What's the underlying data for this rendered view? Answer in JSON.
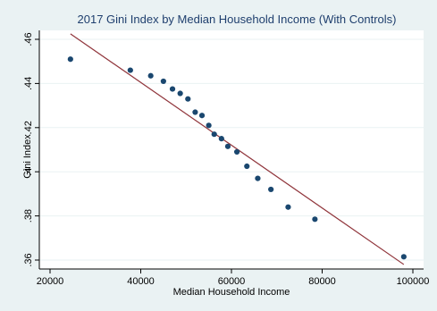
{
  "chart_data": {
    "type": "scatter",
    "title": "2017 Gini Index by Median Household Income (With Controls)",
    "xlabel": "Median Household Income",
    "ylabel": "Gini Index",
    "xlim": [
      20000,
      100000
    ],
    "ylim": [
      0.36,
      0.46
    ],
    "xticks": [
      20000,
      40000,
      60000,
      80000,
      100000
    ],
    "xtick_labels": [
      "20000",
      "40000",
      "60000",
      "80000",
      "100000"
    ],
    "yticks": [
      0.36,
      0.38,
      0.4,
      0.42,
      0.44,
      0.46
    ],
    "ytick_labels": [
      ".36",
      ".38",
      ".4",
      ".42",
      ".44",
      ".46"
    ],
    "grid": true,
    "legend": "none",
    "colors": {
      "background": "#eaf2f3",
      "plot_area": "#ffffff",
      "points": "#1a476f",
      "fit_line": "#90353b",
      "title": "#1f3f6e"
    },
    "points": [
      {
        "x": 24500,
        "y": 0.451
      },
      {
        "x": 37700,
        "y": 0.446
      },
      {
        "x": 42200,
        "y": 0.4435
      },
      {
        "x": 45000,
        "y": 0.441
      },
      {
        "x": 47000,
        "y": 0.4375
      },
      {
        "x": 48700,
        "y": 0.4355
      },
      {
        "x": 50400,
        "y": 0.433
      },
      {
        "x": 52000,
        "y": 0.427
      },
      {
        "x": 53500,
        "y": 0.4255
      },
      {
        "x": 55000,
        "y": 0.421
      },
      {
        "x": 56200,
        "y": 0.417
      },
      {
        "x": 57800,
        "y": 0.415
      },
      {
        "x": 59200,
        "y": 0.4115
      },
      {
        "x": 61200,
        "y": 0.409
      },
      {
        "x": 63400,
        "y": 0.4025
      },
      {
        "x": 65800,
        "y": 0.397
      },
      {
        "x": 68700,
        "y": 0.392
      },
      {
        "x": 72500,
        "y": 0.384
      },
      {
        "x": 78400,
        "y": 0.3785
      },
      {
        "x": 98000,
        "y": 0.3615
      }
    ],
    "fit_line": {
      "x1": 24500,
      "y1": 0.4625,
      "x2": 98000,
      "y2": 0.358
    }
  }
}
